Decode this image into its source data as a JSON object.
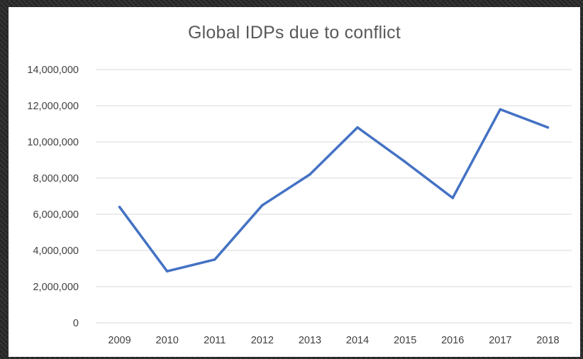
{
  "chart_data": {
    "type": "line",
    "title": "Global IDPs due to conflict",
    "xlabel": "",
    "ylabel": "",
    "categories": [
      "2009",
      "2010",
      "2011",
      "2012",
      "2013",
      "2014",
      "2015",
      "2016",
      "2017",
      "2018"
    ],
    "series": [
      {
        "values": [
          6400000,
          2850000,
          3500000,
          6500000,
          8200000,
          10800000,
          8900000,
          6900000,
          11800000,
          10800000
        ],
        "color": "#4472c4"
      }
    ],
    "ylim": [
      0,
      14000000
    ],
    "yticks": [
      0,
      2000000,
      4000000,
      6000000,
      8000000,
      10000000,
      12000000,
      14000000
    ],
    "ytick_labels": [
      "0",
      "2,000,000",
      "4,000,000",
      "6,000,000",
      "8,000,000",
      "10,000,000",
      "12,000,000",
      "14,000,000"
    ],
    "grid": true,
    "gridline_color": "#d9d9d9",
    "legend": "none"
  }
}
